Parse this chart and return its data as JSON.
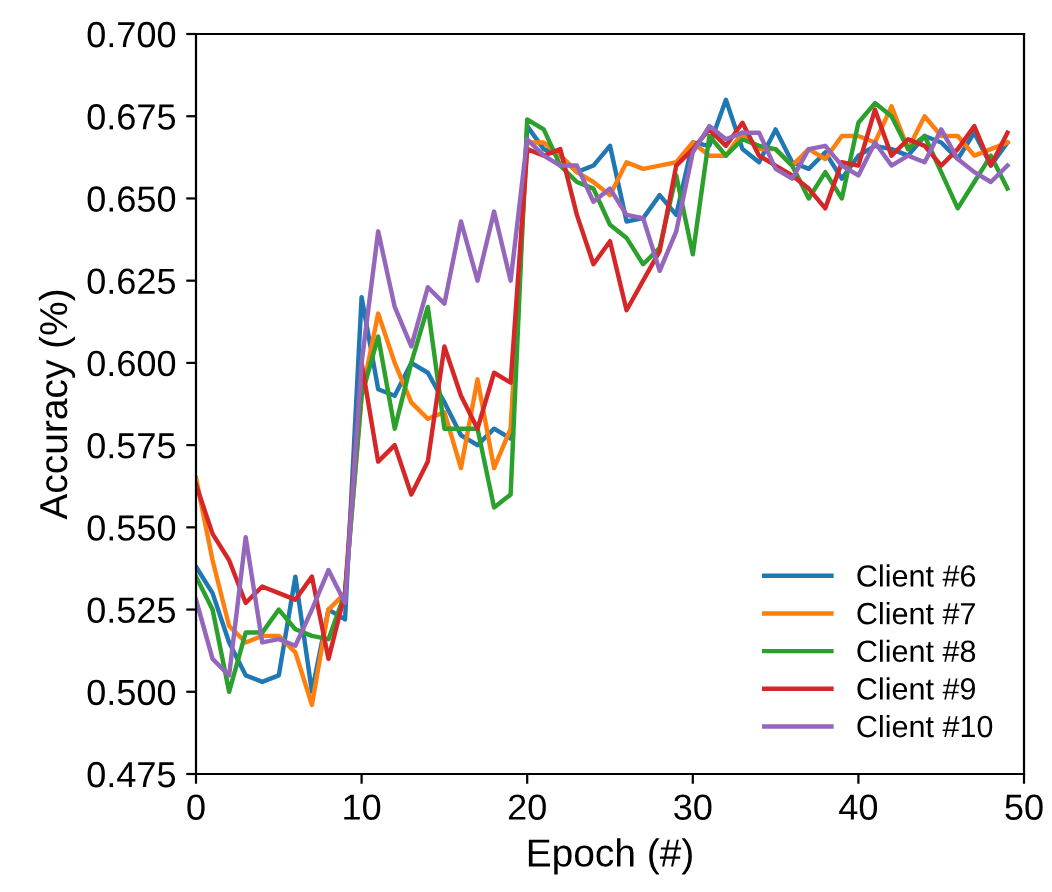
{
  "chart_data": {
    "type": "line",
    "xlabel": "Epoch (#)",
    "ylabel": "Accuracy (%)",
    "x": [
      0,
      1,
      2,
      3,
      4,
      5,
      6,
      7,
      8,
      9,
      10,
      11,
      12,
      13,
      14,
      15,
      16,
      17,
      18,
      19,
      20,
      21,
      22,
      23,
      24,
      25,
      26,
      27,
      28,
      29,
      30,
      31,
      32,
      33,
      34,
      35,
      36,
      37,
      38,
      39,
      40,
      41,
      42,
      43,
      44,
      45,
      46,
      47,
      48,
      49
    ],
    "series": [
      {
        "name": "Client #6",
        "color": "#1f77b4",
        "values": [
          0.538,
          0.53,
          0.515,
          0.505,
          0.503,
          0.505,
          0.535,
          0.5,
          0.525,
          0.522,
          0.62,
          0.592,
          0.59,
          0.6,
          0.597,
          0.588,
          0.578,
          0.575,
          0.58,
          0.577,
          0.672,
          0.665,
          0.663,
          0.658,
          0.66,
          0.666,
          0.643,
          0.644,
          0.651,
          0.645,
          0.667,
          0.666,
          0.68,
          0.665,
          0.661,
          0.671,
          0.661,
          0.659,
          0.664,
          0.656,
          0.663,
          0.666,
          0.665,
          0.663,
          0.669,
          0.667,
          0.662,
          0.67,
          0.66,
          0.667
        ]
      },
      {
        "name": "Client #7",
        "color": "#ff7f0e",
        "values": [
          0.565,
          0.54,
          0.52,
          0.515,
          0.517,
          0.517,
          0.512,
          0.496,
          0.525,
          0.53,
          0.59,
          0.615,
          0.6,
          0.588,
          0.583,
          0.585,
          0.568,
          0.595,
          0.568,
          0.58,
          0.667,
          0.667,
          0.663,
          0.658,
          0.655,
          0.651,
          0.661,
          0.659,
          0.66,
          0.661,
          0.667,
          0.663,
          0.663,
          0.67,
          0.665,
          0.665,
          0.66,
          0.665,
          0.662,
          0.669,
          0.669,
          0.667,
          0.678,
          0.665,
          0.675,
          0.669,
          0.669,
          0.663,
          0.665,
          0.667
        ]
      },
      {
        "name": "Client #8",
        "color": "#2ca02c",
        "values": [
          0.535,
          0.525,
          0.5,
          0.518,
          0.518,
          0.525,
          0.519,
          0.517,
          0.516,
          0.53,
          0.59,
          0.608,
          0.58,
          0.6,
          0.617,
          0.58,
          0.58,
          0.58,
          0.556,
          0.56,
          0.674,
          0.671,
          0.66,
          0.655,
          0.653,
          0.642,
          0.638,
          0.63,
          0.635,
          0.657,
          0.633,
          0.669,
          0.663,
          0.668,
          0.666,
          0.665,
          0.66,
          0.65,
          0.658,
          0.65,
          0.673,
          0.679,
          0.675,
          0.665,
          0.669,
          0.658,
          0.647,
          0.655,
          0.663,
          0.653
        ]
      },
      {
        "name": "Client #9",
        "color": "#d62728",
        "values": [
          0.563,
          0.548,
          0.54,
          0.527,
          0.532,
          0.53,
          0.528,
          0.535,
          0.51,
          0.53,
          0.6,
          0.57,
          0.575,
          0.56,
          0.57,
          0.605,
          0.59,
          0.58,
          0.597,
          0.594,
          0.665,
          0.663,
          0.665,
          0.645,
          0.63,
          0.637,
          0.616,
          0.625,
          0.634,
          0.66,
          0.665,
          0.671,
          0.666,
          0.673,
          0.663,
          0.66,
          0.657,
          0.653,
          0.647,
          0.661,
          0.66,
          0.677,
          0.663,
          0.668,
          0.666,
          0.66,
          0.665,
          0.672,
          0.66,
          0.67
        ]
      },
      {
        "name": "Client #10",
        "color": "#9467bd",
        "values": [
          0.528,
          0.51,
          0.505,
          0.547,
          0.515,
          0.516,
          0.514,
          0.525,
          0.537,
          0.527,
          0.6,
          0.64,
          0.617,
          0.605,
          0.623,
          0.618,
          0.643,
          0.625,
          0.646,
          0.625,
          0.668,
          0.663,
          0.66,
          0.66,
          0.649,
          0.653,
          0.645,
          0.644,
          0.628,
          0.64,
          0.664,
          0.672,
          0.668,
          0.67,
          0.67,
          0.659,
          0.656,
          0.665,
          0.666,
          0.66,
          0.657,
          0.667,
          0.66,
          0.663,
          0.661,
          0.671,
          0.662,
          0.658,
          0.655,
          0.66
        ]
      }
    ],
    "xlim": [
      0,
      50
    ],
    "xticks": [
      0,
      10,
      20,
      30,
      40,
      50
    ],
    "ylim": [
      0.475,
      0.7
    ],
    "yticks": [
      {
        "value": 0.475,
        "label": "0.475"
      },
      {
        "value": 0.5,
        "label": "0.500"
      },
      {
        "value": 0.525,
        "label": "0.525"
      },
      {
        "value": 0.55,
        "label": "0.550"
      },
      {
        "value": 0.575,
        "label": "0.575"
      },
      {
        "value": 0.6,
        "label": "0.600"
      },
      {
        "value": 0.625,
        "label": "0.625"
      },
      {
        "value": 0.65,
        "label": "0.650"
      },
      {
        "value": 0.675,
        "label": "0.675"
      },
      {
        "value": 0.7,
        "label": "0.700"
      }
    ],
    "legend": "lower right",
    "grid": false,
    "marker": "none",
    "line_style": "solid"
  }
}
